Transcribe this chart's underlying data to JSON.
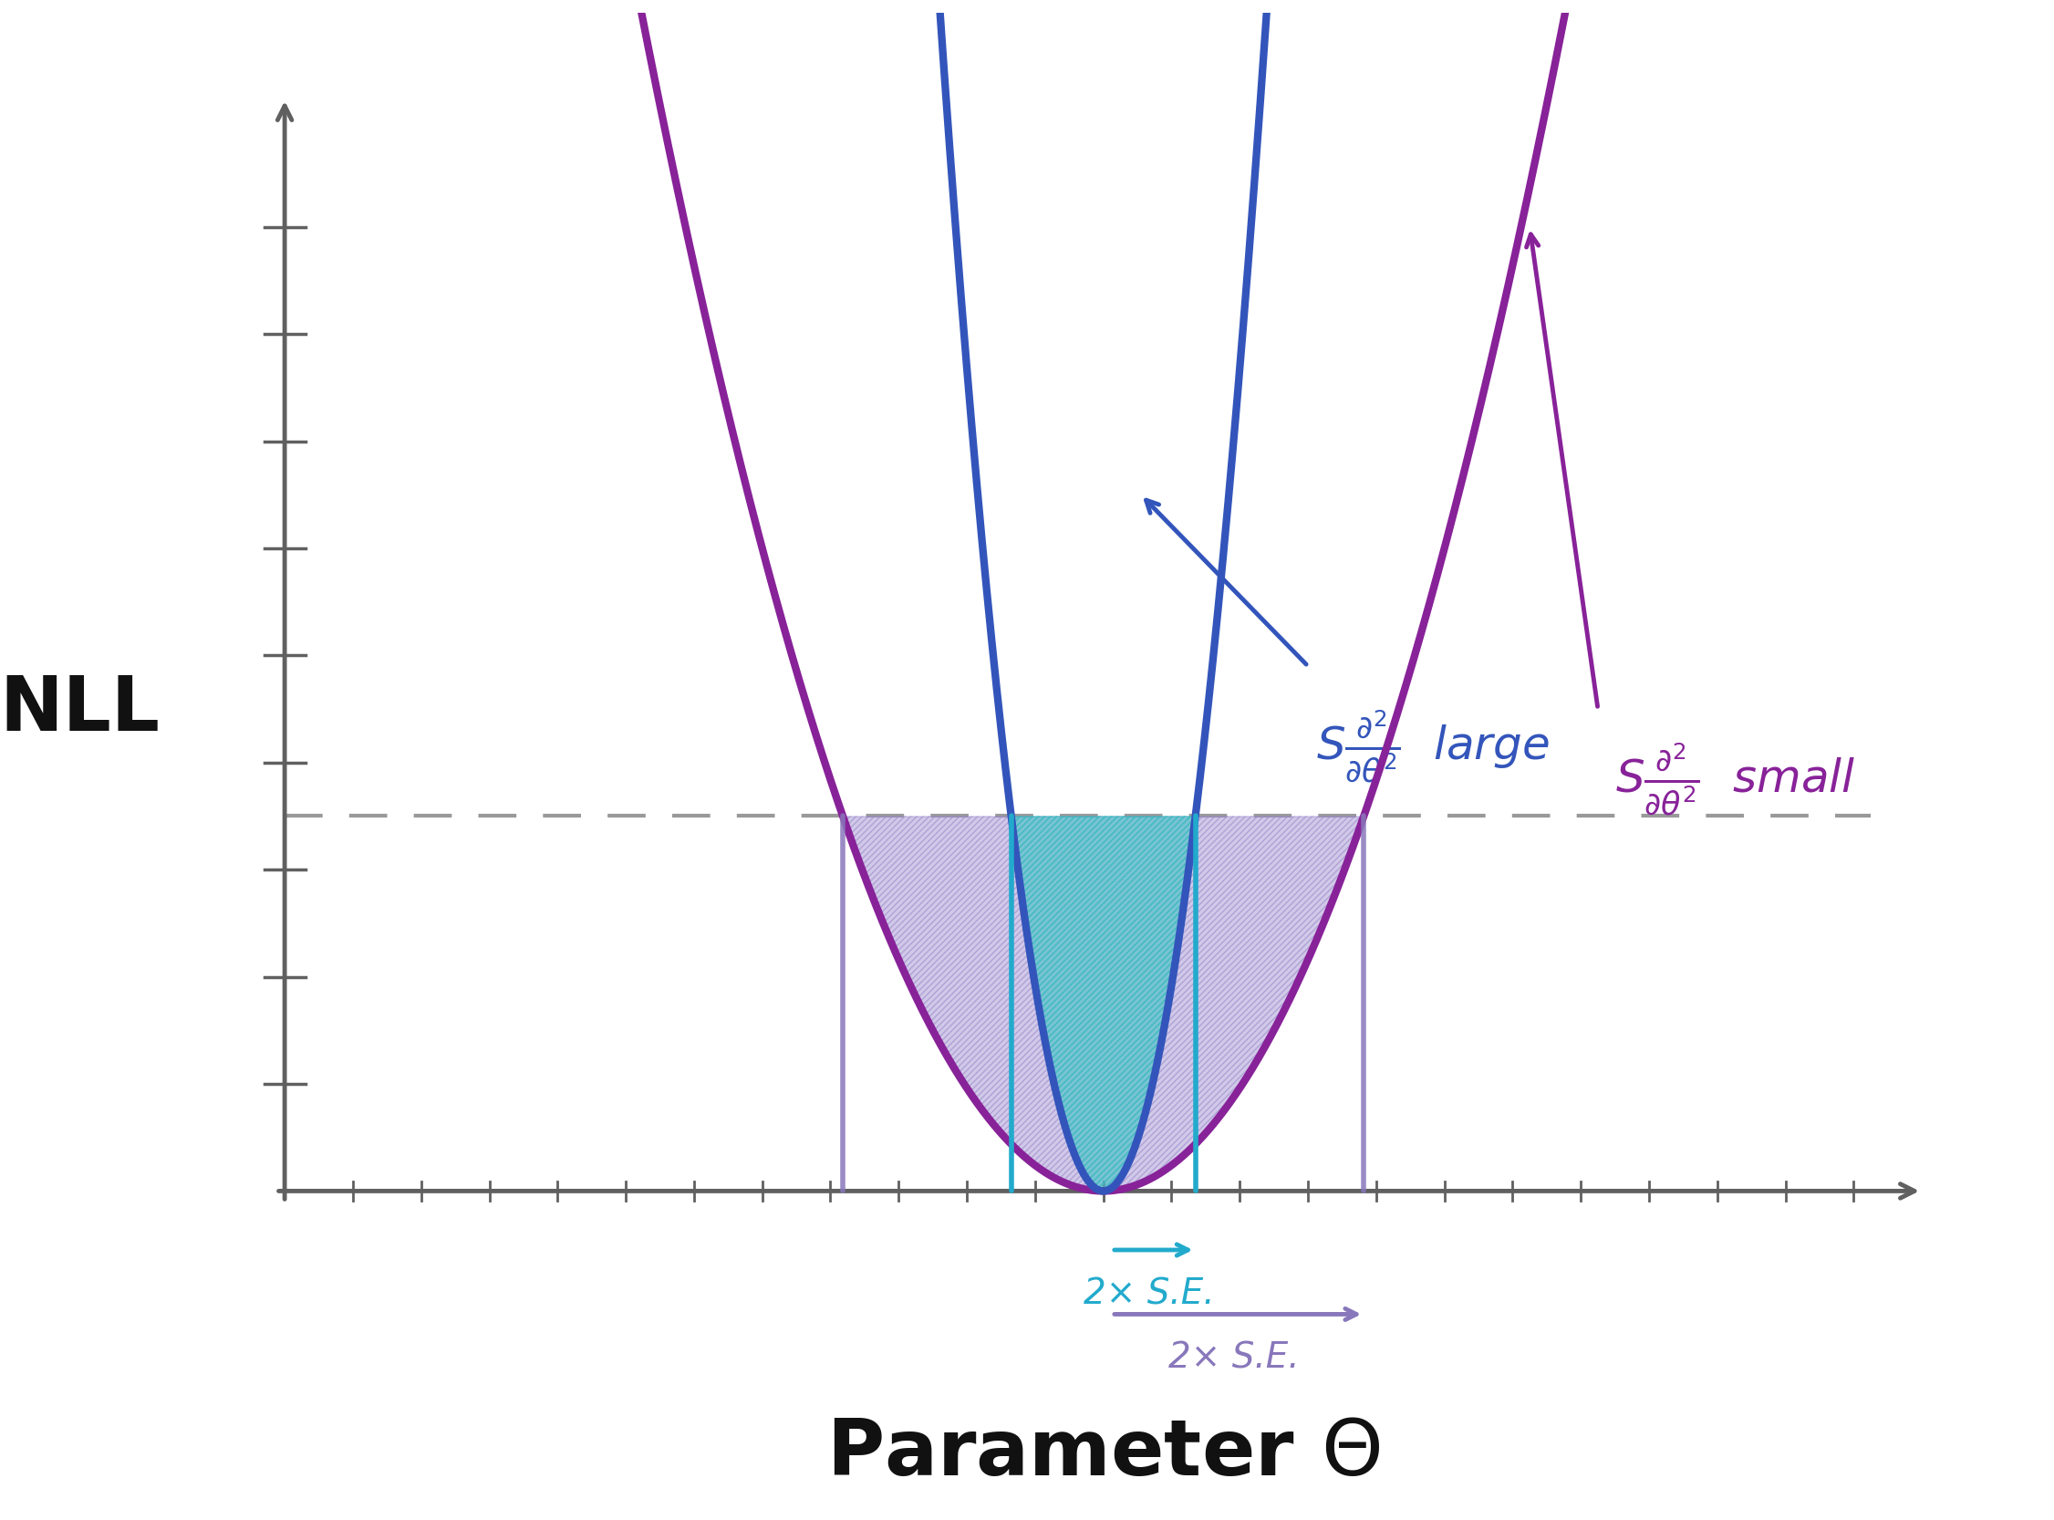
{
  "bg_color": "#ffffff",
  "axis_color": "#606060",
  "steep_color": "#3355bb",
  "shallow_color": "#882299",
  "steep_fill_color": "#30c0c0",
  "shallow_fill_color": "#9988cc",
  "dashed_color": "#999999",
  "se_steep_color": "#22aacc",
  "se_shallow_color": "#8877bb",
  "theta0": 0.0,
  "steep_a": 12.0,
  "shallow_a": 1.5,
  "cutoff_nll": 3.5,
  "xmin": -5.5,
  "xmax": 5.5,
  "ymin": 0.0,
  "ymax": 11.0,
  "ylabel": "NLL",
  "se_label_steep": "2× S.E.",
  "se_label_shallow": "2× S.E.",
  "title": "Parameter Θ"
}
